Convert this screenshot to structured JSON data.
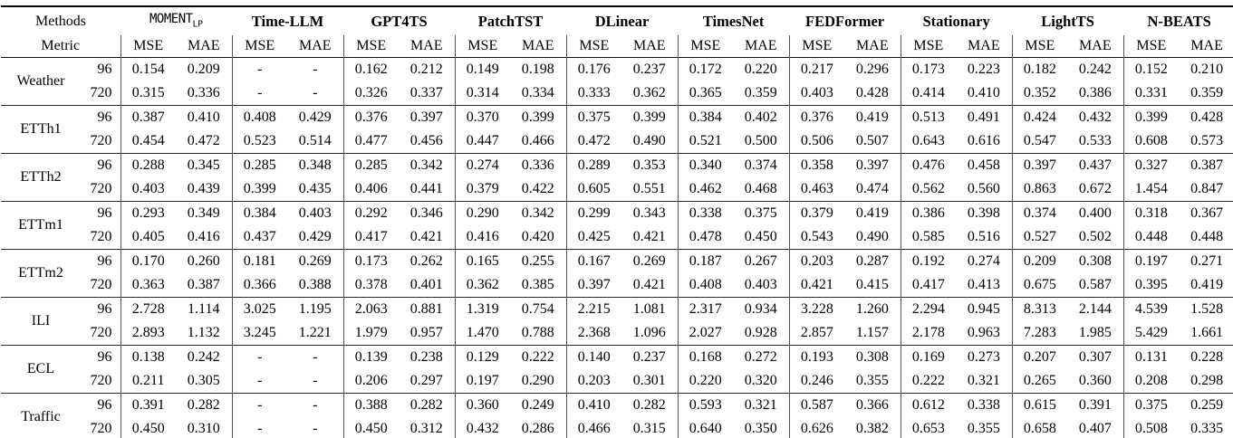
{
  "header": {
    "row1_label": "Methods",
    "row2_label": "Metric",
    "metrics": [
      "MSE",
      "MAE"
    ],
    "methods": [
      {
        "label": "MOMENT",
        "sub": "LP",
        "mono": true
      },
      {
        "label": "Time-LLM",
        "sub": "",
        "mono": false
      },
      {
        "label": "GPT4TS",
        "sub": "",
        "mono": false
      },
      {
        "label": "PatchTST",
        "sub": "",
        "mono": false
      },
      {
        "label": "DLinear",
        "sub": "",
        "mono": false
      },
      {
        "label": "TimesNet",
        "sub": "",
        "mono": false
      },
      {
        "label": "FEDFormer",
        "sub": "",
        "mono": false
      },
      {
        "label": "Stationary",
        "sub": "",
        "mono": false
      },
      {
        "label": "LightTS",
        "sub": "",
        "mono": false
      },
      {
        "label": "N-BEATS",
        "sub": "",
        "mono": false
      }
    ]
  },
  "horizon_labels": [
    "96",
    "720"
  ],
  "datasets": [
    {
      "name": "Weather",
      "h96": [
        "0.154",
        "0.209",
        "-",
        "-",
        "0.162",
        "0.212",
        "0.149",
        "0.198",
        "0.176",
        "0.237",
        "0.172",
        "0.220",
        "0.217",
        "0.296",
        "0.173",
        "0.223",
        "0.182",
        "0.242",
        "0.152",
        "0.210"
      ],
      "h720": [
        "0.315",
        "0.336",
        "-",
        "-",
        "0.326",
        "0.337",
        "0.314",
        "0.334",
        "0.333",
        "0.362",
        "0.365",
        "0.359",
        "0.403",
        "0.428",
        "0.414",
        "0.410",
        "0.352",
        "0.386",
        "0.331",
        "0.359"
      ]
    },
    {
      "name": "ETTh1",
      "h96": [
        "0.387",
        "0.410",
        "0.408",
        "0.429",
        "0.376",
        "0.397",
        "0.370",
        "0.399",
        "0.375",
        "0.399",
        "0.384",
        "0.402",
        "0.376",
        "0.419",
        "0.513",
        "0.491",
        "0.424",
        "0.432",
        "0.399",
        "0.428"
      ],
      "h720": [
        "0.454",
        "0.472",
        "0.523",
        "0.514",
        "0.477",
        "0.456",
        "0.447",
        "0.466",
        "0.472",
        "0.490",
        "0.521",
        "0.500",
        "0.506",
        "0.507",
        "0.643",
        "0.616",
        "0.547",
        "0.533",
        "0.608",
        "0.573"
      ]
    },
    {
      "name": "ETTh2",
      "h96": [
        "0.288",
        "0.345",
        "0.285",
        "0.348",
        "0.285",
        "0.342",
        "0.274",
        "0.336",
        "0.289",
        "0.353",
        "0.340",
        "0.374",
        "0.358",
        "0.397",
        "0.476",
        "0.458",
        "0.397",
        "0.437",
        "0.327",
        "0.387"
      ],
      "h720": [
        "0.403",
        "0.439",
        "0.399",
        "0.435",
        "0.406",
        "0.441",
        "0.379",
        "0.422",
        "0.605",
        "0.551",
        "0.462",
        "0.468",
        "0.463",
        "0.474",
        "0.562",
        "0.560",
        "0.863",
        "0.672",
        "1.454",
        "0.847"
      ]
    },
    {
      "name": "ETTm1",
      "h96": [
        "0.293",
        "0.349",
        "0.384",
        "0.403",
        "0.292",
        "0.346",
        "0.290",
        "0.342",
        "0.299",
        "0.343",
        "0.338",
        "0.375",
        "0.379",
        "0.419",
        "0.386",
        "0.398",
        "0.374",
        "0.400",
        "0.318",
        "0.367"
      ],
      "h720": [
        "0.405",
        "0.416",
        "0.437",
        "0.429",
        "0.417",
        "0.421",
        "0.416",
        "0.420",
        "0.425",
        "0.421",
        "0.478",
        "0.450",
        "0.543",
        "0.490",
        "0.585",
        "0.516",
        "0.527",
        "0.502",
        "0.448",
        "0.448"
      ]
    },
    {
      "name": "ETTm2",
      "h96": [
        "0.170",
        "0.260",
        "0.181",
        "0.269",
        "0.173",
        "0.262",
        "0.165",
        "0.255",
        "0.167",
        "0.269",
        "0.187",
        "0.267",
        "0.203",
        "0.287",
        "0.192",
        "0.274",
        "0.209",
        "0.308",
        "0.197",
        "0.271"
      ],
      "h720": [
        "0.363",
        "0.387",
        "0.366",
        "0.388",
        "0.378",
        "0.401",
        "0.362",
        "0.385",
        "0.397",
        "0.421",
        "0.408",
        "0.403",
        "0.421",
        "0.415",
        "0.417",
        "0.413",
        "0.675",
        "0.587",
        "0.395",
        "0.419"
      ]
    },
    {
      "name": "ILI",
      "h96": [
        "2.728",
        "1.114",
        "3.025",
        "1.195",
        "2.063",
        "0.881",
        "1.319",
        "0.754",
        "2.215",
        "1.081",
        "2.317",
        "0.934",
        "3.228",
        "1.260",
        "2.294",
        "0.945",
        "8.313",
        "2.144",
        "4.539",
        "1.528"
      ],
      "h720": [
        "2.893",
        "1.132",
        "3.245",
        "1.221",
        "1.979",
        "0.957",
        "1.470",
        "0.788",
        "2.368",
        "1.096",
        "2.027",
        "0.928",
        "2.857",
        "1.157",
        "2.178",
        "0.963",
        "7.283",
        "1.985",
        "5.429",
        "1.661"
      ]
    },
    {
      "name": "ECL",
      "h96": [
        "0.138",
        "0.242",
        "-",
        "-",
        "0.139",
        "0.238",
        "0.129",
        "0.222",
        "0.140",
        "0.237",
        "0.168",
        "0.272",
        "0.193",
        "0.308",
        "0.169",
        "0.273",
        "0.207",
        "0.307",
        "0.131",
        "0.228"
      ],
      "h720": [
        "0.211",
        "0.305",
        "-",
        "-",
        "0.206",
        "0.297",
        "0.197",
        "0.290",
        "0.203",
        "0.301",
        "0.220",
        "0.320",
        "0.246",
        "0.355",
        "0.222",
        "0.321",
        "0.265",
        "0.360",
        "0.208",
        "0.298"
      ]
    },
    {
      "name": "Traffic",
      "h96": [
        "0.391",
        "0.282",
        "-",
        "-",
        "0.388",
        "0.282",
        "0.360",
        "0.249",
        "0.410",
        "0.282",
        "0.593",
        "0.321",
        "0.587",
        "0.366",
        "0.612",
        "0.338",
        "0.615",
        "0.391",
        "0.375",
        "0.259"
      ],
      "h720": [
        "0.450",
        "0.310",
        "-",
        "-",
        "0.450",
        "0.312",
        "0.432",
        "0.286",
        "0.466",
        "0.315",
        "0.640",
        "0.350",
        "0.626",
        "0.382",
        "0.653",
        "0.355",
        "0.658",
        "0.407",
        "0.508",
        "0.335"
      ]
    }
  ]
}
